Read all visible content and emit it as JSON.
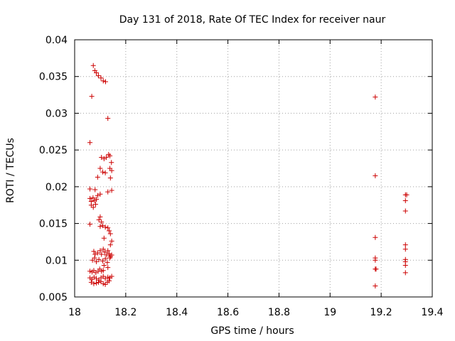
{
  "chart_data": {
    "type": "scatter",
    "title": "Day 131 of 2018, Rate Of TEC Index for receiver naur",
    "xlabel": "GPS time / hours",
    "ylabel": "ROTI / TECUs",
    "xlim": [
      18,
      19.4
    ],
    "ylim": [
      0.005,
      0.04
    ],
    "xticks": [
      "18",
      "18.2",
      "18.4",
      "18.6",
      "18.8",
      "19",
      "19.2",
      "19.4"
    ],
    "yticks": [
      "0.005",
      "0.01",
      "0.015",
      "0.02",
      "0.025",
      "0.03",
      "0.035",
      "0.04"
    ],
    "grid": true,
    "marker": "+",
    "color": "#cc0000",
    "series": [
      {
        "name": "ROTI",
        "points": [
          [
            18.073,
            0.0365
          ],
          [
            18.079,
            0.0358
          ],
          [
            18.085,
            0.0355
          ],
          [
            18.093,
            0.0351
          ],
          [
            18.103,
            0.0348
          ],
          [
            18.112,
            0.0344
          ],
          [
            18.121,
            0.0343
          ],
          [
            18.067,
            0.0323
          ],
          [
            18.13,
            0.0293
          ],
          [
            18.06,
            0.026
          ],
          [
            18.105,
            0.024
          ],
          [
            18.115,
            0.0238
          ],
          [
            18.124,
            0.024
          ],
          [
            18.133,
            0.0244
          ],
          [
            18.138,
            0.0242
          ],
          [
            18.144,
            0.0233
          ],
          [
            18.1,
            0.0225
          ],
          [
            18.11,
            0.022
          ],
          [
            18.12,
            0.0219
          ],
          [
            18.138,
            0.0225
          ],
          [
            18.145,
            0.0222
          ],
          [
            18.09,
            0.0213
          ],
          [
            18.14,
            0.0212
          ],
          [
            18.06,
            0.0197
          ],
          [
            18.08,
            0.0196
          ],
          [
            18.09,
            0.0188
          ],
          [
            18.1,
            0.019
          ],
          [
            18.13,
            0.0193
          ],
          [
            18.145,
            0.0195
          ],
          [
            18.06,
            0.0184
          ],
          [
            18.065,
            0.018
          ],
          [
            18.072,
            0.0185
          ],
          [
            18.078,
            0.0181
          ],
          [
            18.085,
            0.0183
          ],
          [
            18.065,
            0.0175
          ],
          [
            18.073,
            0.0172
          ],
          [
            18.082,
            0.0176
          ],
          [
            18.06,
            0.0149
          ],
          [
            18.095,
            0.0155
          ],
          [
            18.1,
            0.0159
          ],
          [
            18.105,
            0.0152
          ],
          [
            18.1,
            0.0146
          ],
          [
            18.11,
            0.0147
          ],
          [
            18.12,
            0.0145
          ],
          [
            18.13,
            0.0144
          ],
          [
            18.135,
            0.014
          ],
          [
            18.14,
            0.0136
          ],
          [
            18.115,
            0.013
          ],
          [
            18.145,
            0.0126
          ],
          [
            18.14,
            0.0121
          ],
          [
            18.075,
            0.0112
          ],
          [
            18.08,
            0.0108
          ],
          [
            18.09,
            0.011
          ],
          [
            18.1,
            0.0113
          ],
          [
            18.105,
            0.0108
          ],
          [
            18.112,
            0.0115
          ],
          [
            18.118,
            0.0111
          ],
          [
            18.125,
            0.0107
          ],
          [
            18.13,
            0.0113
          ],
          [
            18.135,
            0.0109
          ],
          [
            18.14,
            0.0105
          ],
          [
            18.145,
            0.0107
          ],
          [
            18.07,
            0.01
          ],
          [
            18.078,
            0.0103
          ],
          [
            18.085,
            0.0098
          ],
          [
            18.095,
            0.0101
          ],
          [
            18.11,
            0.0099
          ],
          [
            18.12,
            0.0102
          ],
          [
            18.128,
            0.0097
          ],
          [
            18.138,
            0.0103
          ],
          [
            18.115,
            0.0093
          ],
          [
            18.13,
            0.009
          ],
          [
            18.06,
            0.0085
          ],
          [
            18.068,
            0.0084
          ],
          [
            18.075,
            0.0086
          ],
          [
            18.083,
            0.0083
          ],
          [
            18.092,
            0.0085
          ],
          [
            18.098,
            0.0088
          ],
          [
            18.105,
            0.0085
          ],
          [
            18.112,
            0.0086
          ],
          [
            18.06,
            0.0076
          ],
          [
            18.068,
            0.0074
          ],
          [
            18.076,
            0.0077
          ],
          [
            18.085,
            0.0075
          ],
          [
            18.095,
            0.0073
          ],
          [
            18.103,
            0.0076
          ],
          [
            18.112,
            0.0078
          ],
          [
            18.12,
            0.0075
          ],
          [
            18.13,
            0.0077
          ],
          [
            18.138,
            0.0076
          ],
          [
            18.145,
            0.0078
          ],
          [
            18.065,
            0.007
          ],
          [
            18.075,
            0.0068
          ],
          [
            18.085,
            0.0069
          ],
          [
            18.093,
            0.007
          ],
          [
            18.103,
            0.0071
          ],
          [
            18.112,
            0.0068
          ],
          [
            18.12,
            0.0067
          ],
          [
            18.128,
            0.007
          ],
          [
            18.135,
            0.0072
          ],
          [
            19.177,
            0.0322
          ],
          [
            19.177,
            0.0215
          ],
          [
            19.177,
            0.0131
          ],
          [
            19.177,
            0.0103
          ],
          [
            19.177,
            0.01
          ],
          [
            19.177,
            0.0088
          ],
          [
            19.18,
            0.0088
          ],
          [
            19.177,
            0.0065
          ],
          [
            19.295,
            0.0189
          ],
          [
            19.3,
            0.0189
          ],
          [
            19.295,
            0.0181
          ],
          [
            19.295,
            0.0167
          ],
          [
            19.295,
            0.0121
          ],
          [
            19.295,
            0.0115
          ],
          [
            19.295,
            0.0101
          ],
          [
            19.295,
            0.0098
          ],
          [
            19.295,
            0.0093
          ],
          [
            19.295,
            0.0083
          ]
        ]
      }
    ]
  }
}
